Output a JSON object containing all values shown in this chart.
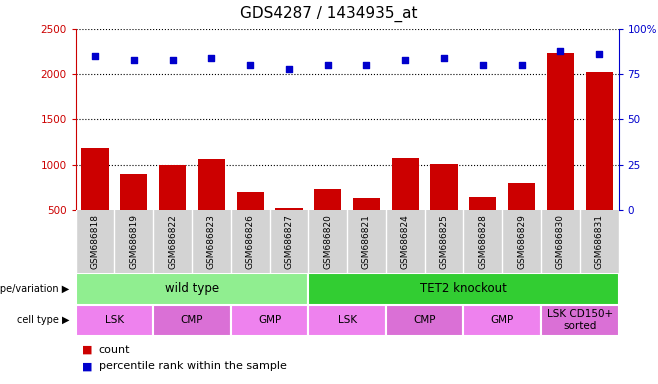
{
  "title": "GDS4287 / 1434935_at",
  "samples": [
    "GSM686818",
    "GSM686819",
    "GSM686822",
    "GSM686823",
    "GSM686826",
    "GSM686827",
    "GSM686820",
    "GSM686821",
    "GSM686824",
    "GSM686825",
    "GSM686828",
    "GSM686829",
    "GSM686830",
    "GSM686831"
  ],
  "count_values": [
    1180,
    890,
    1000,
    1060,
    700,
    520,
    730,
    625,
    1070,
    1010,
    645,
    790,
    2240,
    2020
  ],
  "percentile_values": [
    85,
    83,
    83,
    84,
    80,
    78,
    80,
    80,
    83,
    84,
    80,
    80,
    88,
    86
  ],
  "bar_color": "#cc0000",
  "dot_color": "#0000cc",
  "ylim_left": [
    500,
    2500
  ],
  "ylim_right": [
    0,
    100
  ],
  "yticks_left": [
    500,
    1000,
    1500,
    2000,
    2500
  ],
  "yticks_right": [
    0,
    25,
    50,
    75,
    100
  ],
  "grid_lines": [
    1000,
    1500,
    2000,
    2500
  ],
  "genotype_groups": [
    {
      "label": "wild type",
      "start": 0,
      "end": 6,
      "color": "#90ee90"
    },
    {
      "label": "TET2 knockout",
      "start": 6,
      "end": 14,
      "color": "#32cd32"
    }
  ],
  "cell_type_groups": [
    {
      "label": "LSK",
      "start": 0,
      "end": 2,
      "color": "#ee82ee"
    },
    {
      "label": "CMP",
      "start": 2,
      "end": 4,
      "color": "#da70d6"
    },
    {
      "label": "GMP",
      "start": 4,
      "end": 6,
      "color": "#ee82ee"
    },
    {
      "label": "LSK",
      "start": 6,
      "end": 8,
      "color": "#ee82ee"
    },
    {
      "label": "CMP",
      "start": 8,
      "end": 10,
      "color": "#da70d6"
    },
    {
      "label": "GMP",
      "start": 10,
      "end": 12,
      "color": "#ee82ee"
    },
    {
      "label": "LSK CD150+\nsorted",
      "start": 12,
      "end": 14,
      "color": "#da70d6"
    }
  ],
  "legend_count_label": "count",
  "legend_percentile_label": "percentile rank within the sample",
  "xlabel_genotype": "genotype/variation",
  "xlabel_celltype": "cell type",
  "ticklabel_bg": "#d3d3d3",
  "axis_left_color": "#cc0000",
  "axis_right_color": "#0000cc",
  "title_fontsize": 11,
  "tick_fontsize": 7.5
}
